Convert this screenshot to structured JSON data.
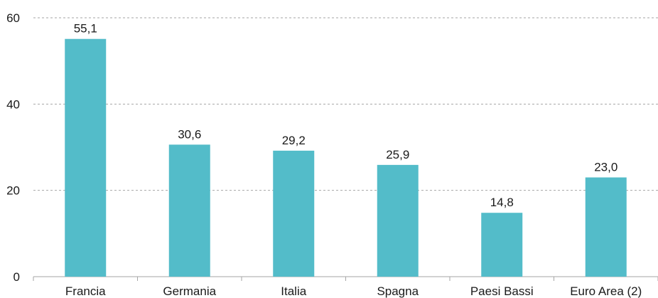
{
  "chart_data": {
    "type": "bar",
    "categories": [
      "Francia",
      "Germania",
      "Italia",
      "Spagna",
      "Paesi Bassi",
      "Euro Area (2)"
    ],
    "values": [
      55.1,
      30.6,
      29.2,
      25.9,
      14.8,
      23.0
    ],
    "data_labels": [
      "55,1",
      "30,6",
      "29,2",
      "25,9",
      "14,8",
      "23,0"
    ],
    "yticks": [
      0,
      20,
      40,
      60
    ],
    "ytick_labels": [
      "0",
      "20",
      "40",
      "60"
    ],
    "ylim": [
      0,
      60
    ],
    "title": "",
    "xlabel": "",
    "ylabel": "",
    "grid": true,
    "legend": "none",
    "bar_color": "#53BCC9",
    "grid_color": "#A6A6A6"
  }
}
